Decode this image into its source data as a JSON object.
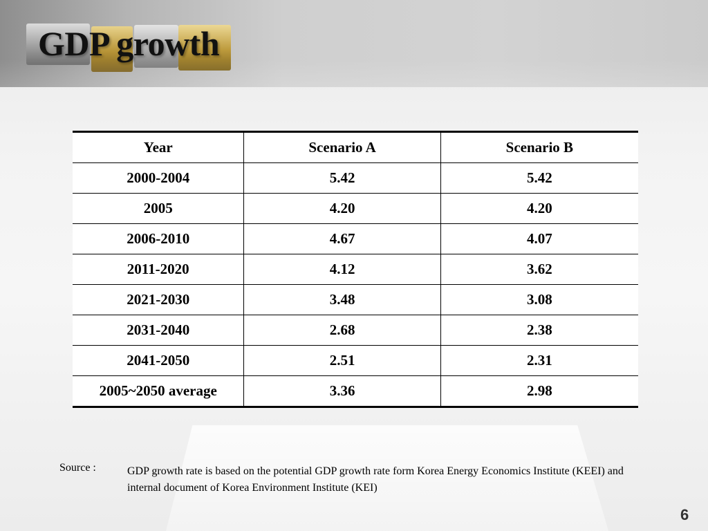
{
  "slide": {
    "title": "GDP growth",
    "page_number": "6"
  },
  "table": {
    "headers": [
      "Year",
      "Scenario A",
      "Scenario B"
    ],
    "rows": [
      [
        "2000-2004",
        "5.42",
        "5.42"
      ],
      [
        "2005",
        "4.20",
        "4.20"
      ],
      [
        "2006-2010",
        "4.67",
        "4.07"
      ],
      [
        "2011-2020",
        "4.12",
        "3.62"
      ],
      [
        "2021-2030",
        "3.48",
        "3.08"
      ],
      [
        "2031-2040",
        "2.68",
        "2.38"
      ],
      [
        "2041-2050",
        "2.51",
        "2.31"
      ],
      [
        "2005~2050 average",
        "3.36",
        "2.98"
      ]
    ]
  },
  "source": {
    "label": "Source :",
    "text": "GDP growth rate is based on the potential GDP growth rate form Korea Energy Economics Institute (KEEI) and internal document of Korea Environment Institute (KEI)"
  }
}
